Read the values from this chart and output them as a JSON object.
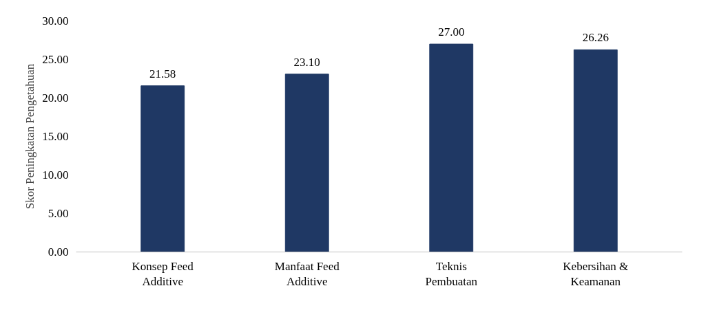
{
  "chart_data": {
    "type": "bar",
    "ylabel": "Skor Peningkatan Pengetahuan",
    "categories": [
      "Konsep Feed Additive",
      "Manfaat Feed Additive",
      "Teknis Pembuatan",
      "Kebersihan & Keamanan"
    ],
    "values": [
      21.58,
      23.1,
      27.0,
      26.26
    ],
    "value_labels": [
      "21.58",
      "23.10",
      "27.00",
      "26.26"
    ],
    "color": "#1f3864",
    "ylim": [
      0,
      30
    ],
    "yticks": [
      {
        "value": 0,
        "label": "0.00"
      },
      {
        "value": 5,
        "label": "5.00"
      },
      {
        "value": 10,
        "label": "10.00"
      },
      {
        "value": 15,
        "label": "15.00"
      },
      {
        "value": 20,
        "label": "20.00"
      },
      {
        "value": 25,
        "label": "25.00"
      },
      {
        "value": 30,
        "label": "30.00"
      }
    ],
    "grid": false
  }
}
